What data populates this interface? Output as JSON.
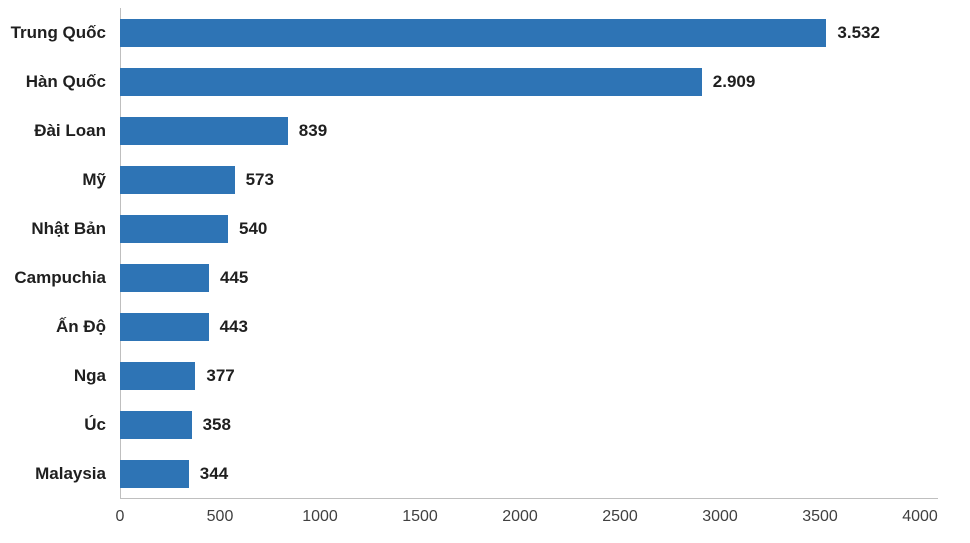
{
  "chart_data": {
    "type": "bar",
    "orientation": "horizontal",
    "title": "",
    "categories": [
      "Trung Quốc",
      "Hàn Quốc",
      "Đài Loan",
      "Mỹ",
      "Nhật Bản",
      "Campuchia",
      "Ấn Độ",
      "Nga",
      "Úc",
      "Malaysia"
    ],
    "values": [
      3532,
      2909,
      839,
      573,
      540,
      445,
      443,
      377,
      358,
      344
    ],
    "value_labels": [
      "3.532",
      "2.909",
      "839",
      "573",
      "540",
      "445",
      "443",
      "377",
      "358",
      "344"
    ],
    "xlabel": "",
    "ylabel": "",
    "xlim": [
      0,
      4000
    ],
    "x_ticks": [
      0,
      500,
      1000,
      1500,
      2000,
      2500,
      3000,
      3500,
      4000
    ],
    "x_tick_labels": [
      "0",
      "500",
      "1000",
      "1500",
      "2000",
      "2500",
      "3000",
      "3500",
      "4000"
    ],
    "grid": false,
    "legend": false,
    "colors": {
      "bar": "#2E74B5",
      "axis_line": "#BFBFBF",
      "category_label": "#1F1F1F",
      "tick_label": "#404040",
      "background": "#FFFFFF"
    }
  }
}
